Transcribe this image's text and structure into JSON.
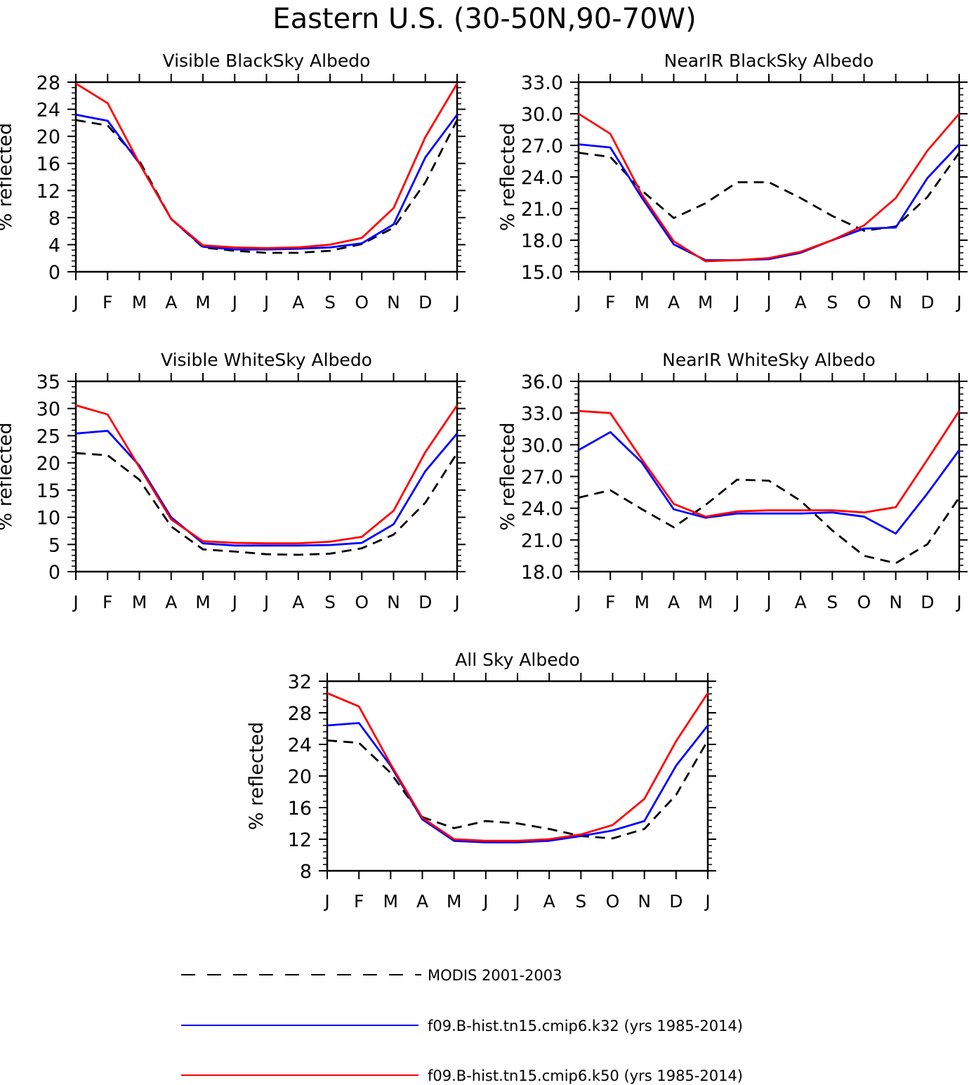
{
  "figure": {
    "title": "Eastern U.S. (30-50N,90-70W)"
  },
  "legend": [
    {
      "label": "MODIS 2001-2003",
      "color": "#000000",
      "style": "dashed"
    },
    {
      "label": "f09.B-hist.tn15.cmip6.k32 (yrs 1985-2014)",
      "color": "#0000ff",
      "style": "solid"
    },
    {
      "label": "f09.B-hist.tn15.cmip6.k50 (yrs 1985-2014)",
      "color": "#ff0000",
      "style": "solid"
    }
  ],
  "chart_data": [
    {
      "type": "line",
      "title": "Visible BlackSky Albedo",
      "xlabel": "",
      "ylabel": "% reflected",
      "categories": [
        "J",
        "F",
        "M",
        "A",
        "M",
        "J",
        "J",
        "A",
        "S",
        "O",
        "N",
        "D",
        "J"
      ],
      "ylim": [
        0,
        28
      ],
      "yticks": [
        "0",
        "4",
        "8",
        "12",
        "16",
        "20",
        "24",
        "28"
      ],
      "yticks_values": [
        0,
        4,
        8,
        12,
        16,
        20,
        24,
        28
      ],
      "series": [
        {
          "name": "MODIS 2001-2003",
          "values": [
            22.4,
            21.6,
            16.4,
            7.8,
            3.6,
            3.1,
            2.8,
            2.8,
            3.1,
            4.1,
            6.5,
            13.2,
            22.4
          ]
        },
        {
          "name": "f09.B-hist.tn15.cmip6.k32 (yrs 1985-2014)",
          "values": [
            23.2,
            22.3,
            16.0,
            7.8,
            3.7,
            3.3,
            3.3,
            3.4,
            3.6,
            4.2,
            7.0,
            16.9,
            23.2
          ]
        },
        {
          "name": "f09.B-hist.tn15.cmip6.k50 (yrs 1985-2014)",
          "values": [
            27.8,
            24.9,
            16.0,
            7.8,
            3.9,
            3.6,
            3.5,
            3.6,
            4.0,
            5.0,
            9.4,
            19.9,
            27.8
          ]
        }
      ]
    },
    {
      "type": "line",
      "title": "NearIR BlackSky Albedo",
      "xlabel": "",
      "ylabel": "% reflected",
      "categories": [
        "J",
        "F",
        "M",
        "A",
        "M",
        "J",
        "J",
        "A",
        "S",
        "O",
        "N",
        "D",
        "J"
      ],
      "ylim": [
        15,
        33
      ],
      "yticks": [
        "15.0",
        "18.0",
        "21.0",
        "24.0",
        "27.0",
        "30.0",
        "33.0"
      ],
      "yticks_values": [
        15,
        18,
        21,
        24,
        27,
        30,
        33
      ],
      "series": [
        {
          "name": "MODIS 2001-2003",
          "values": [
            26.3,
            25.9,
            22.7,
            20.1,
            21.5,
            23.5,
            23.5,
            22.0,
            20.3,
            18.9,
            19.3,
            22.1,
            26.3
          ]
        },
        {
          "name": "f09.B-hist.tn15.cmip6.k32 (yrs 1985-2014)",
          "values": [
            27.1,
            26.8,
            22.0,
            17.6,
            16.1,
            16.1,
            16.2,
            16.8,
            18.0,
            19.1,
            19.2,
            23.9,
            27.1
          ]
        },
        {
          "name": "f09.B-hist.tn15.cmip6.k50 (yrs 1985-2014)",
          "values": [
            30.0,
            28.1,
            22.3,
            17.9,
            16.0,
            16.1,
            16.3,
            16.9,
            18.0,
            19.4,
            22.0,
            26.5,
            30.0
          ]
        }
      ]
    },
    {
      "type": "line",
      "title": "Visible WhiteSky Albedo",
      "xlabel": "",
      "ylabel": "% reflected",
      "categories": [
        "J",
        "F",
        "M",
        "A",
        "M",
        "J",
        "J",
        "A",
        "S",
        "O",
        "N",
        "D",
        "J"
      ],
      "ylim": [
        0,
        35
      ],
      "yticks": [
        "0",
        "5",
        "10",
        "15",
        "20",
        "25",
        "30",
        "35"
      ],
      "yticks_values": [
        0,
        5,
        10,
        15,
        20,
        25,
        30,
        35
      ],
      "series": [
        {
          "name": "MODIS 2001-2003",
          "values": [
            21.8,
            21.4,
            16.9,
            8.3,
            4.1,
            3.7,
            3.2,
            3.1,
            3.3,
            4.3,
            6.8,
            12.7,
            21.8
          ]
        },
        {
          "name": "f09.B-hist.tn15.cmip6.k32 (yrs 1985-2014)",
          "values": [
            25.4,
            25.9,
            19.5,
            10.0,
            5.2,
            4.8,
            4.8,
            4.8,
            4.9,
            5.3,
            8.7,
            18.5,
            25.4
          ]
        },
        {
          "name": "f09.B-hist.tn15.cmip6.k50 (yrs 1985-2014)",
          "values": [
            30.6,
            28.9,
            19.2,
            9.6,
            5.6,
            5.3,
            5.2,
            5.2,
            5.5,
            6.4,
            11.2,
            22.0,
            30.6
          ]
        }
      ]
    },
    {
      "type": "line",
      "title": "NearIR WhiteSky Albedo",
      "xlabel": "",
      "ylabel": "% reflected",
      "categories": [
        "J",
        "F",
        "M",
        "A",
        "M",
        "J",
        "J",
        "A",
        "S",
        "O",
        "N",
        "D",
        "J"
      ],
      "ylim": [
        18,
        36
      ],
      "yticks": [
        "18.0",
        "21.0",
        "24.0",
        "27.0",
        "30.0",
        "33.0",
        "36.0"
      ],
      "yticks_values": [
        18,
        21,
        24,
        27,
        30,
        33,
        36
      ],
      "series": [
        {
          "name": "MODIS 2001-2003",
          "values": [
            25.0,
            25.7,
            23.9,
            22.2,
            24.3,
            26.7,
            26.6,
            24.7,
            21.9,
            19.5,
            18.8,
            20.6,
            25.0
          ]
        },
        {
          "name": "f09.B-hist.tn15.cmip6.k32 (yrs 1985-2014)",
          "values": [
            29.5,
            31.2,
            28.3,
            23.9,
            23.1,
            23.5,
            23.5,
            23.5,
            23.6,
            23.2,
            21.6,
            25.4,
            29.5
          ]
        },
        {
          "name": "f09.B-hist.tn15.cmip6.k50 (yrs 1985-2014)",
          "values": [
            33.2,
            33.0,
            28.6,
            24.4,
            23.2,
            23.7,
            23.8,
            23.8,
            23.8,
            23.6,
            24.1,
            28.6,
            33.2
          ]
        }
      ]
    },
    {
      "type": "line",
      "title": "All Sky Albedo",
      "xlabel": "",
      "ylabel": "% reflected",
      "categories": [
        "J",
        "F",
        "M",
        "A",
        "M",
        "J",
        "J",
        "A",
        "S",
        "O",
        "N",
        "D",
        "J"
      ],
      "ylim": [
        8,
        32
      ],
      "yticks": [
        "8",
        "12",
        "16",
        "20",
        "24",
        "28",
        "32"
      ],
      "yticks_values": [
        8,
        12,
        16,
        20,
        24,
        28,
        32
      ],
      "series": [
        {
          "name": "MODIS 2001-2003",
          "values": [
            24.5,
            24.2,
            20.4,
            14.8,
            13.4,
            14.3,
            14.0,
            13.3,
            12.4,
            12.1,
            13.3,
            17.6,
            24.5
          ]
        },
        {
          "name": "f09.B-hist.tn15.cmip6.k32 (yrs 1985-2014)",
          "values": [
            26.4,
            26.7,
            21.3,
            14.5,
            11.8,
            11.6,
            11.6,
            11.8,
            12.4,
            13.1,
            14.3,
            21.3,
            26.4
          ]
        },
        {
          "name": "f09.B-hist.tn15.cmip6.k50 (yrs 1985-2014)",
          "values": [
            30.5,
            28.8,
            21.5,
            14.7,
            12.0,
            11.8,
            11.8,
            12.0,
            12.6,
            13.8,
            17.1,
            24.4,
            30.5
          ]
        }
      ]
    }
  ]
}
